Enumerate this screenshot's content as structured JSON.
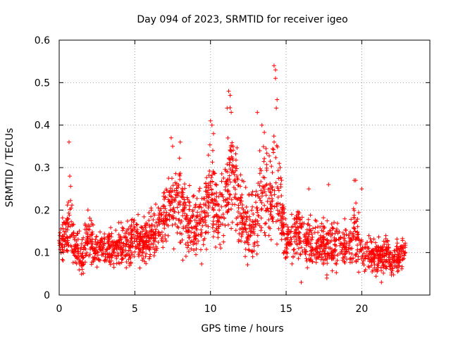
{
  "chart_data": {
    "type": "scatter",
    "title": "Day 094 of 2023, SRMTID for receiver igeo",
    "xlabel": "GPS time / hours",
    "ylabel": "SRMTID / TECUs",
    "xlim": [
      0,
      24.5
    ],
    "ylim": [
      0,
      0.6
    ],
    "xticks": [
      0,
      5,
      10,
      15,
      20
    ],
    "xtick_labels": [
      "0",
      "5",
      "10",
      "15",
      "20"
    ],
    "yticks": [
      0,
      0.1,
      0.2,
      0.3,
      0.4,
      0.5,
      0.6
    ],
    "ytick_labels": [
      "0",
      "0.1",
      "0.2",
      "0.3",
      "0.4",
      "0.5",
      "0.6"
    ],
    "grid": true,
    "marker": "+",
    "color": "#ff0000",
    "profile": {
      "description": "dense scatter of SRMTID samples vs GPS time; values are [hour, base, spread]",
      "hours_range": [
        0,
        22.9
      ],
      "envelope": [
        [
          0.0,
          0.12,
          0.05
        ],
        [
          0.5,
          0.14,
          0.06
        ],
        [
          0.7,
          0.2,
          0.12
        ],
        [
          1.0,
          0.11,
          0.05
        ],
        [
          1.5,
          0.09,
          0.05
        ],
        [
          1.8,
          0.14,
          0.07
        ],
        [
          2.5,
          0.11,
          0.05
        ],
        [
          3.5,
          0.11,
          0.05
        ],
        [
          4.5,
          0.12,
          0.06
        ],
        [
          5.5,
          0.13,
          0.06
        ],
        [
          6.5,
          0.15,
          0.07
        ],
        [
          7.3,
          0.22,
          0.1
        ],
        [
          8.0,
          0.2,
          0.12
        ],
        [
          8.5,
          0.17,
          0.09
        ],
        [
          9.0,
          0.18,
          0.1
        ],
        [
          9.5,
          0.17,
          0.09
        ],
        [
          10.0,
          0.26,
          0.13
        ],
        [
          10.5,
          0.18,
          0.09
        ],
        [
          11.0,
          0.22,
          0.13
        ],
        [
          11.3,
          0.3,
          0.16
        ],
        [
          11.8,
          0.22,
          0.13
        ],
        [
          12.5,
          0.15,
          0.08
        ],
        [
          13.0,
          0.18,
          0.1
        ],
        [
          13.5,
          0.25,
          0.15
        ],
        [
          14.0,
          0.22,
          0.13
        ],
        [
          14.3,
          0.32,
          0.2
        ],
        [
          14.6,
          0.2,
          0.1
        ],
        [
          15.0,
          0.13,
          0.06
        ],
        [
          16.0,
          0.14,
          0.07
        ],
        [
          16.5,
          0.13,
          0.07
        ],
        [
          17.0,
          0.11,
          0.06
        ],
        [
          18.0,
          0.12,
          0.08
        ],
        [
          19.0,
          0.11,
          0.06
        ],
        [
          19.6,
          0.15,
          0.09
        ],
        [
          20.0,
          0.1,
          0.05
        ],
        [
          21.0,
          0.09,
          0.05
        ],
        [
          21.5,
          0.1,
          0.05
        ],
        [
          22.0,
          0.08,
          0.04
        ],
        [
          22.9,
          0.1,
          0.05
        ]
      ],
      "peaks": [
        [
          0.65,
          0.36
        ],
        [
          0.7,
          0.28
        ],
        [
          1.9,
          0.2
        ],
        [
          7.4,
          0.37
        ],
        [
          7.5,
          0.35
        ],
        [
          8.0,
          0.36
        ],
        [
          10.0,
          0.41
        ],
        [
          10.1,
          0.4
        ],
        [
          10.2,
          0.38
        ],
        [
          11.2,
          0.48
        ],
        [
          11.3,
          0.47
        ],
        [
          11.1,
          0.44
        ],
        [
          11.5,
          0.35
        ],
        [
          13.1,
          0.43
        ],
        [
          13.4,
          0.4
        ],
        [
          14.2,
          0.54
        ],
        [
          14.3,
          0.53
        ],
        [
          14.3,
          0.51
        ],
        [
          14.35,
          0.44
        ],
        [
          14.4,
          0.46
        ],
        [
          14.6,
          0.3
        ],
        [
          16.5,
          0.25
        ],
        [
          17.8,
          0.26
        ],
        [
          19.5,
          0.27
        ],
        [
          19.6,
          0.27
        ],
        [
          20.0,
          0.25
        ],
        [
          16.0,
          0.03
        ],
        [
          21.3,
          0.03
        ]
      ]
    }
  }
}
